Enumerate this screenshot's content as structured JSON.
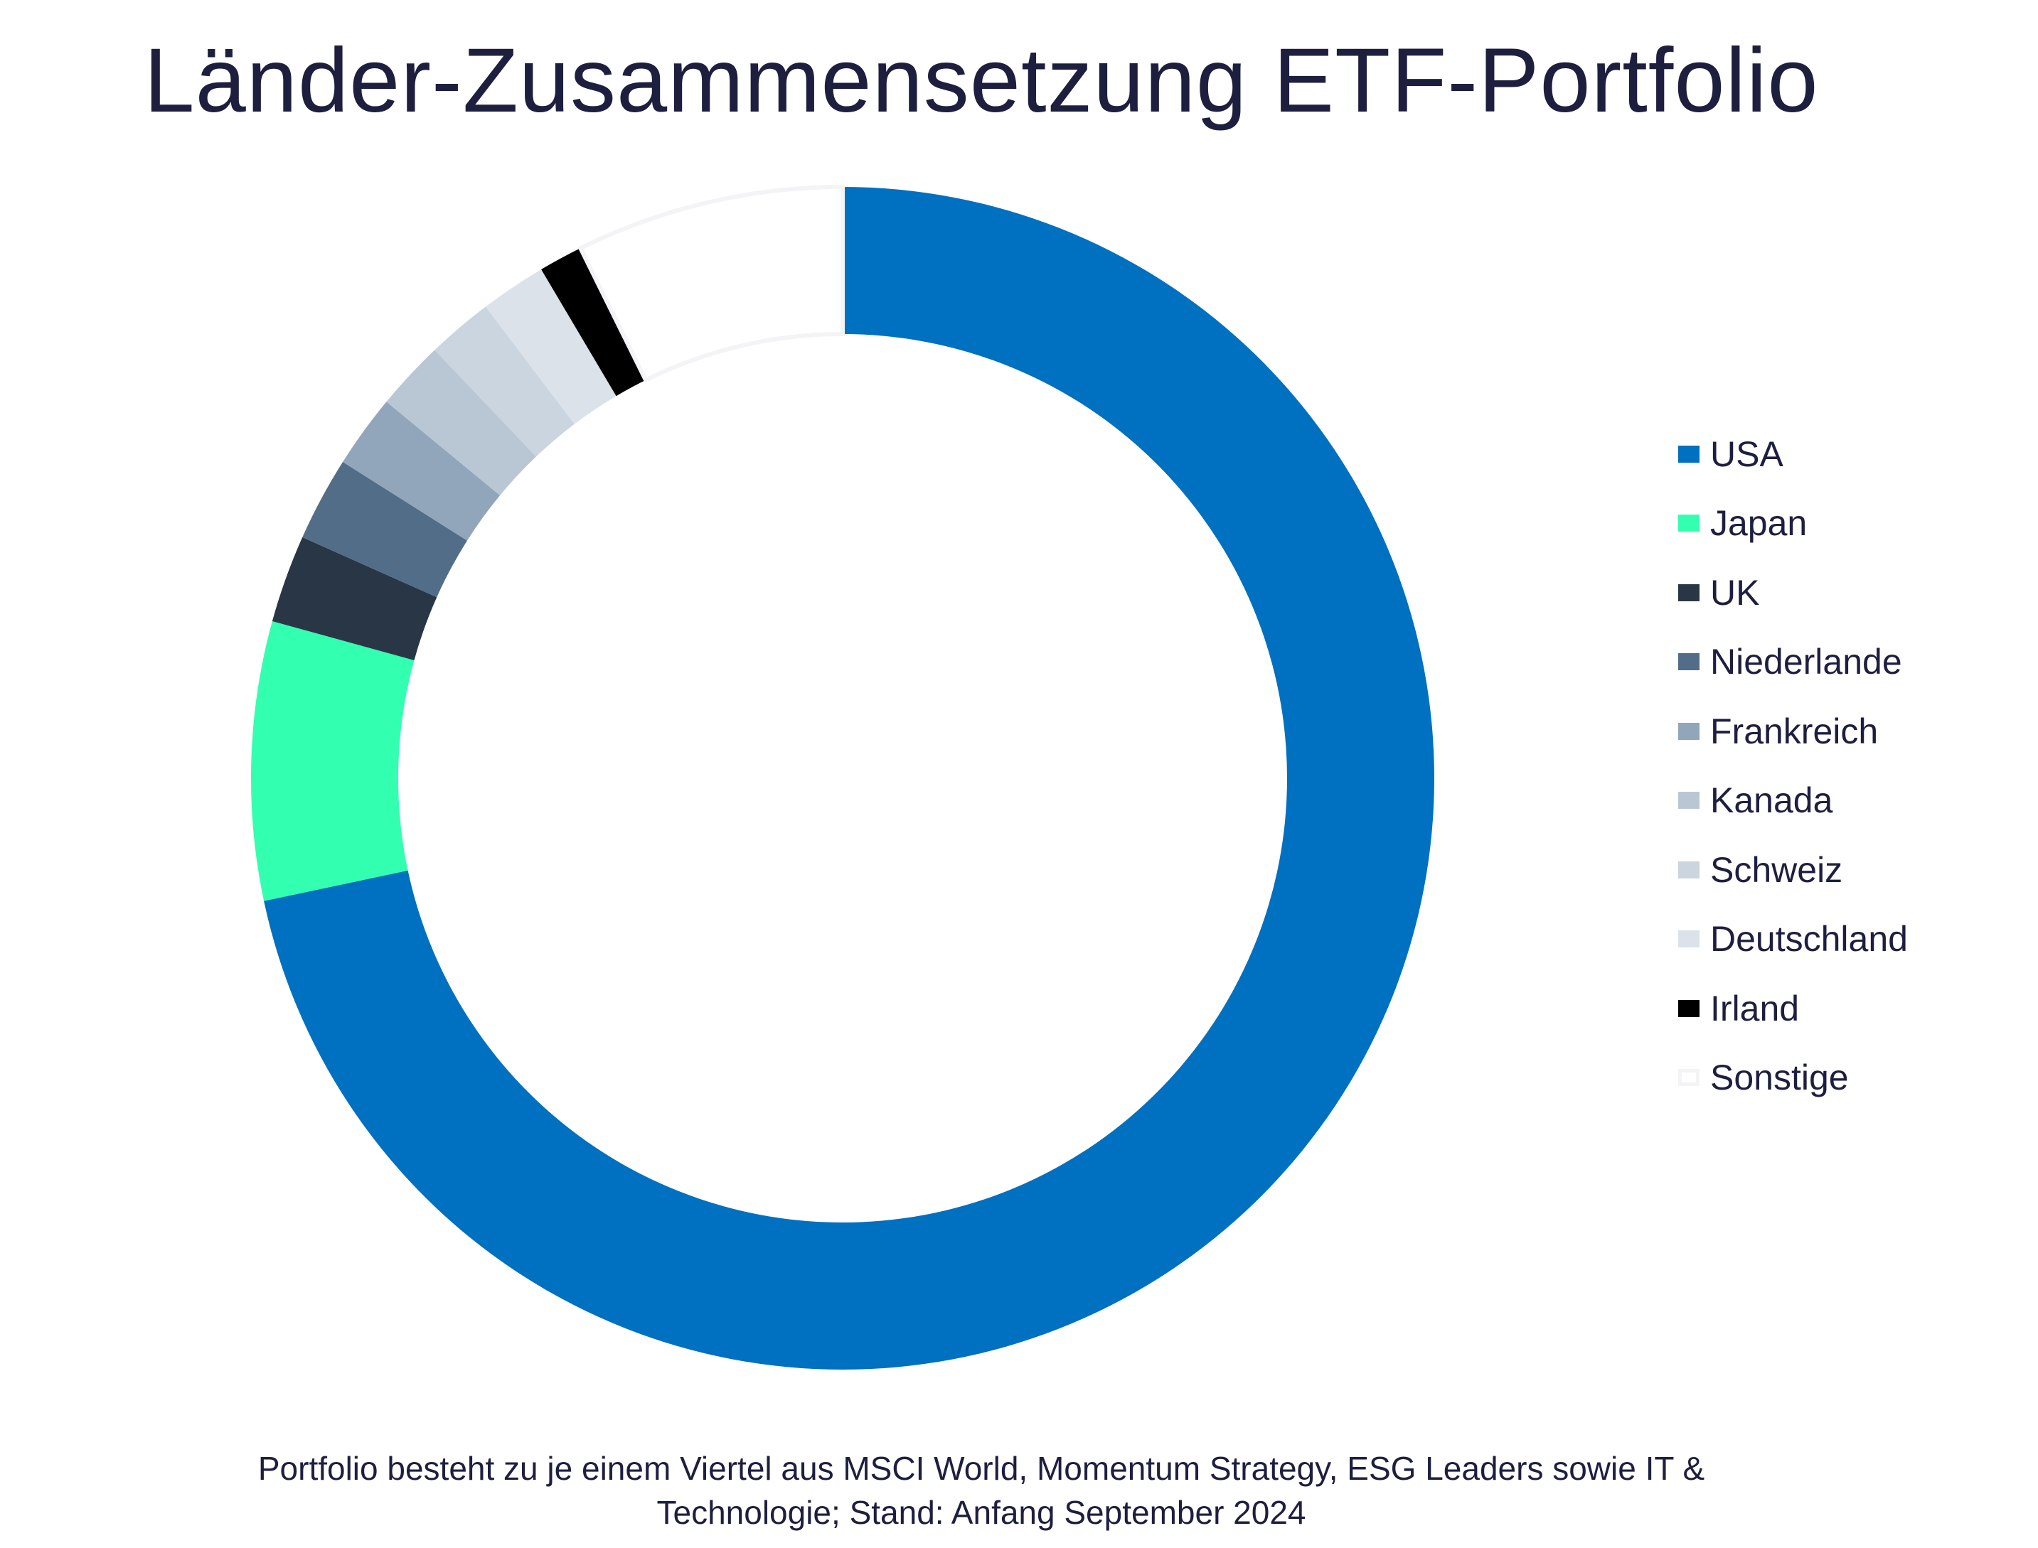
{
  "chart_data": {
    "type": "pie",
    "variant": "donut",
    "title": "Länder-Zusammensetzung ETF-Portfolio",
    "unit": "percent",
    "legend_position": "right",
    "start_angle": "top, clockwise",
    "categories": [
      "USA",
      "Japan",
      "UK",
      "Niederlande",
      "Frankreich",
      "Kanada",
      "Schweiz",
      "Deutschland",
      "Irland",
      "Sonstige"
    ],
    "values": [
      71.6,
      7.6,
      2.4,
      2.3,
      2.0,
      1.9,
      1.8,
      1.8,
      1.2,
      7.3
    ],
    "colors": [
      "#0070c0",
      "#33ffb0",
      "#293645",
      "#526d88",
      "#91a5bb",
      "#b9c7d4",
      "#cbd5df",
      "#dbe2ea",
      "#000000",
      "#ffffff"
    ],
    "outline_color_sonstige": "#f3f4f6",
    "footnote_lines": [
      "Portfolio besteht zu je einem Viertel aus MSCI World, Momentum Strategy, ESG Leaders sowie IT &",
      "Technologie; Stand: Anfang September 2024"
    ]
  }
}
